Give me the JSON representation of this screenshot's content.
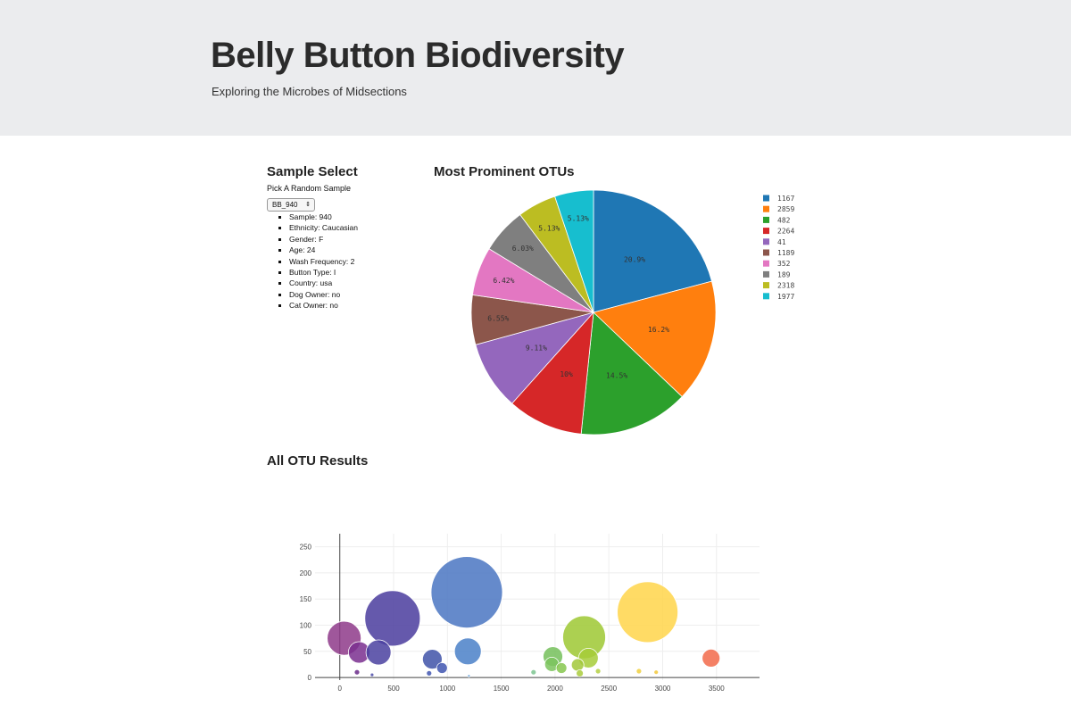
{
  "header": {
    "title": "Belly Button Biodiversity",
    "subtitle": "Exploring the Microbes of Midsections"
  },
  "sample_panel": {
    "title": "Sample Select",
    "pick_label": "Pick A Random Sample",
    "selected": "BB_940",
    "metadata": [
      "Sample: 940",
      "Ethnicity: Caucasian",
      "Gender: F",
      "Age: 24",
      "Wash Frequency: 2",
      "Button Type: I",
      "Country: usa",
      "Dog Owner: no",
      "Cat Owner: no"
    ]
  },
  "pie_panel": {
    "title": "Most Prominent OTUs"
  },
  "bubble_panel": {
    "title": "All OTU Results"
  },
  "chart_data": [
    {
      "type": "pie",
      "labels": [
        "1167",
        "2859",
        "482",
        "2264",
        "41",
        "1189",
        "352",
        "189",
        "2318",
        "1977"
      ],
      "values": [
        20.9,
        16.2,
        14.5,
        10,
        9.11,
        6.55,
        6.42,
        6.03,
        5.13,
        5.13
      ],
      "text_labels": [
        "20.9%",
        "16.2%",
        "14.5%",
        "10%",
        "9.11%",
        "6.55%",
        "6.42%",
        "6.03%",
        "5.13%",
        "5.13%"
      ],
      "colors": [
        "#1f77b4",
        "#ff7f0e",
        "#2ca02c",
        "#d62728",
        "#9467bd",
        "#8c564b",
        "#e377c2",
        "#7f7f7f",
        "#bcbd22",
        "#17becf"
      ],
      "legend": "right"
    },
    {
      "type": "scatter",
      "xticks": [
        0,
        500,
        1000,
        1500,
        2000,
        2500,
        3000,
        3500
      ],
      "yticks": [
        0,
        50,
        100,
        150,
        200,
        250
      ],
      "xlim": [
        -230,
        3900
      ],
      "ylim": [
        -5,
        275
      ],
      "grid": true,
      "points": [
        {
          "x": 40,
          "y": 75,
          "r": 19,
          "color": "#8e3a8a"
        },
        {
          "x": 180,
          "y": 48,
          "r": 12,
          "color": "#7a2f8f"
        },
        {
          "x": 160,
          "y": 10,
          "r": 3,
          "color": "#6a2a8a"
        },
        {
          "x": 490,
          "y": 113,
          "r": 31,
          "color": "#4a3c9e"
        },
        {
          "x": 360,
          "y": 48,
          "r": 14,
          "color": "#4a41a0"
        },
        {
          "x": 300,
          "y": 5,
          "r": 2,
          "color": "#4a4aa8"
        },
        {
          "x": 860,
          "y": 35,
          "r": 11,
          "color": "#3f52a8"
        },
        {
          "x": 950,
          "y": 18,
          "r": 6,
          "color": "#3f55b0"
        },
        {
          "x": 830,
          "y": 8,
          "r": 3,
          "color": "#4257b2"
        },
        {
          "x": 1180,
          "y": 163,
          "r": 40,
          "color": "#4a76c2"
        },
        {
          "x": 1190,
          "y": 50,
          "r": 15,
          "color": "#4a80c8"
        },
        {
          "x": 1200,
          "y": 3,
          "r": 1.5,
          "color": "#5090d0"
        },
        {
          "x": 1800,
          "y": 10,
          "r": 3,
          "color": "#7cc490"
        },
        {
          "x": 1980,
          "y": 40,
          "r": 11,
          "color": "#74bf5a"
        },
        {
          "x": 1970,
          "y": 25,
          "r": 8,
          "color": "#7cc45e"
        },
        {
          "x": 2060,
          "y": 18,
          "r": 6,
          "color": "#86c74e"
        },
        {
          "x": 2270,
          "y": 77,
          "r": 24,
          "color": "#9ec832"
        },
        {
          "x": 2310,
          "y": 37,
          "r": 11,
          "color": "#a6cc38"
        },
        {
          "x": 2210,
          "y": 24,
          "r": 7,
          "color": "#a2c83a"
        },
        {
          "x": 2230,
          "y": 8,
          "r": 4,
          "color": "#aacd3c"
        },
        {
          "x": 2400,
          "y": 12,
          "r": 3,
          "color": "#b5d044"
        },
        {
          "x": 2860,
          "y": 125,
          "r": 34,
          "color": "#ffd54a"
        },
        {
          "x": 2780,
          "y": 12,
          "r": 3,
          "color": "#f0d040"
        },
        {
          "x": 2940,
          "y": 10,
          "r": 2.5,
          "color": "#f2c83a"
        },
        {
          "x": 3450,
          "y": 37,
          "r": 10,
          "color": "#f26a4a"
        }
      ]
    }
  ]
}
